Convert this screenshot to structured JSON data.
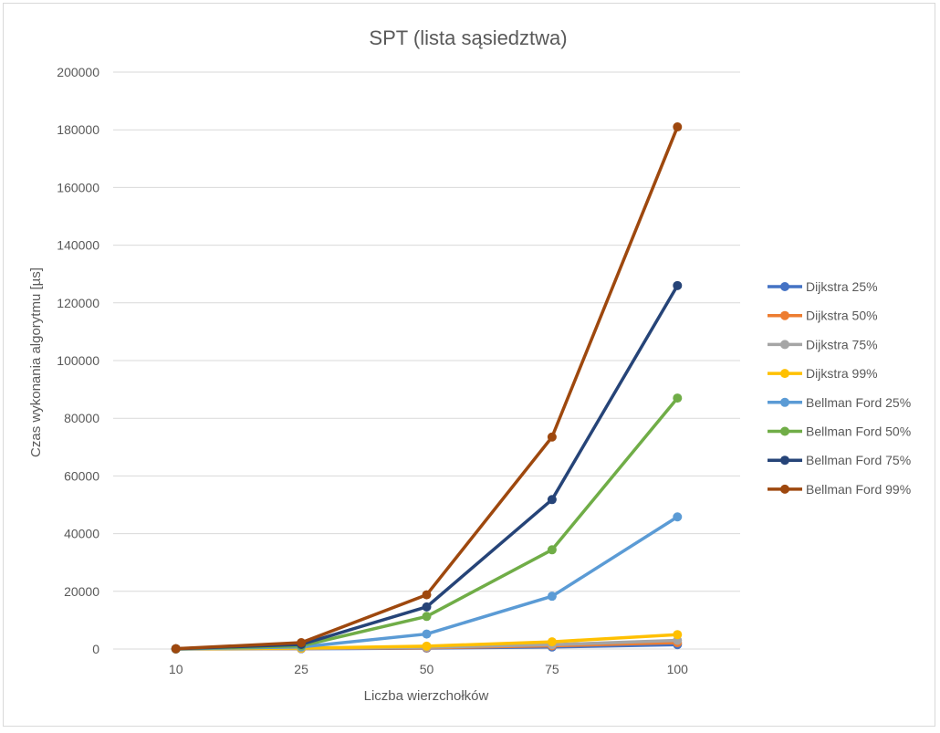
{
  "chart_data": {
    "type": "line",
    "title": "SPT (lista sąsiedztwa)",
    "xlabel": "Liczba wierzchołków",
    "ylabel": "Czas wykonania algorytmu [µs]",
    "categories": [
      "10",
      "25",
      "50",
      "75",
      "100"
    ],
    "ylim": [
      0,
      200000
    ],
    "yticks": [
      0,
      20000,
      40000,
      60000,
      80000,
      100000,
      120000,
      140000,
      160000,
      180000,
      200000
    ],
    "grid": true,
    "legend": "right",
    "series": [
      {
        "name": "Dijkstra 25%",
        "color": "#4472C4",
        "values": [
          20,
          100,
          300,
          700,
          1500
        ]
      },
      {
        "name": "Dijkstra 50%",
        "color": "#ED7D31",
        "values": [
          25,
          150,
          450,
          1100,
          2200
        ]
      },
      {
        "name": "Dijkstra 75%",
        "color": "#A5A5A5",
        "values": [
          30,
          200,
          600,
          1500,
          3000
        ]
      },
      {
        "name": "Dijkstra 99%",
        "color": "#FFC000",
        "values": [
          40,
          300,
          1000,
          2500,
          5000
        ]
      },
      {
        "name": "Bellman Ford 25%",
        "color": "#5B9BD5",
        "values": [
          50,
          700,
          5200,
          18300,
          45800
        ]
      },
      {
        "name": "Bellman Ford 50%",
        "color": "#70AD47",
        "values": [
          70,
          1100,
          11300,
          34400,
          87000
        ]
      },
      {
        "name": "Bellman Ford 75%",
        "color": "#264478",
        "values": [
          90,
          1600,
          14600,
          51800,
          126000
        ]
      },
      {
        "name": "Bellman Ford 99%",
        "color": "#9E480E",
        "values": [
          110,
          2200,
          18800,
          73500,
          181000
        ]
      }
    ]
  }
}
